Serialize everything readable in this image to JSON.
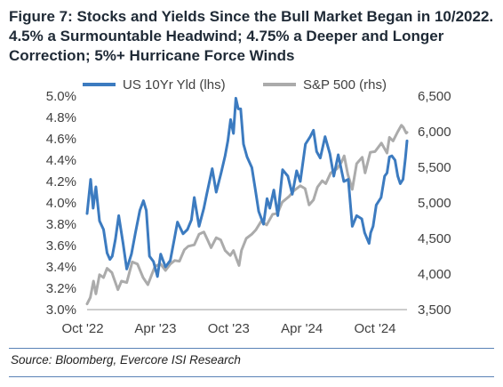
{
  "title": "Figure 7: Stocks and Yields Since the Bull Market Began in 10/2022. 4.5% a Surmountable Headwind; 4.75% a Deeper and Longer Correction; 5%+ Hurricane Force Winds",
  "source": "Source: Bloomberg, Evercore ISI Research",
  "chart_data": {
    "type": "line",
    "title": "Figure 7: Stocks and Yields Since the Bull Market Began in 10/2022. 4.5% a Surmountable Headwind; 4.75% a Deeper and Longer Correction; 5%+ Hurricane Force Winds",
    "xlabel": "",
    "ylabel_left": "",
    "ylabel_right": "",
    "x_tick_labels": [
      "Oct '22",
      "Apr '23",
      "Oct '23",
      "Apr '24",
      "Oct '24"
    ],
    "x_tick_dates": [
      "2022-10-01",
      "2023-04-01",
      "2023-10-01",
      "2024-04-01",
      "2024-10-01"
    ],
    "x_range": [
      "2022-10-12",
      "2024-12-20"
    ],
    "y_left": {
      "ticks": [
        "3.0%",
        "3.2%",
        "3.4%",
        "3.6%",
        "3.8%",
        "4.0%",
        "4.2%",
        "4.4%",
        "4.6%",
        "4.8%",
        "5.0%"
      ],
      "min": 3.0,
      "max": 5.0
    },
    "y_right": {
      "ticks": [
        "3,500",
        "4,000",
        "4,500",
        "5,000",
        "5,500",
        "6,000",
        "6,500"
      ],
      "min": 3500,
      "max": 6500
    },
    "grid": false,
    "legend_position": "top-center",
    "series": [
      {
        "name": "US 10Yr Yld (lhs)",
        "axis": "left",
        "color": "#3c7bc0",
        "points": [
          [
            "2022-10-12",
            3.9
          ],
          [
            "2022-10-21",
            4.22
          ],
          [
            "2022-10-27",
            3.95
          ],
          [
            "2022-11-03",
            4.15
          ],
          [
            "2022-11-12",
            3.83
          ],
          [
            "2022-11-22",
            3.75
          ],
          [
            "2022-12-01",
            3.53
          ],
          [
            "2022-12-08",
            3.47
          ],
          [
            "2022-12-14",
            3.5
          ],
          [
            "2022-12-22",
            3.66
          ],
          [
            "2022-12-30",
            3.88
          ],
          [
            "2023-01-10",
            3.62
          ],
          [
            "2023-01-19",
            3.38
          ],
          [
            "2023-01-31",
            3.52
          ],
          [
            "2023-02-10",
            3.72
          ],
          [
            "2023-02-21",
            3.93
          ],
          [
            "2023-03-02",
            4.02
          ],
          [
            "2023-03-09",
            3.93
          ],
          [
            "2023-03-17",
            3.5
          ],
          [
            "2023-03-27",
            3.45
          ],
          [
            "2023-04-06",
            3.31
          ],
          [
            "2023-04-14",
            3.52
          ],
          [
            "2023-04-26",
            3.4
          ],
          [
            "2023-05-08",
            3.46
          ],
          [
            "2023-05-19",
            3.68
          ],
          [
            "2023-05-26",
            3.82
          ],
          [
            "2023-06-09",
            3.71
          ],
          [
            "2023-06-20",
            3.75
          ],
          [
            "2023-06-30",
            3.84
          ],
          [
            "2023-07-07",
            4.05
          ],
          [
            "2023-07-19",
            3.78
          ],
          [
            "2023-07-31",
            3.95
          ],
          [
            "2023-08-07",
            4.08
          ],
          [
            "2023-08-21",
            4.32
          ],
          [
            "2023-08-31",
            4.1
          ],
          [
            "2023-09-12",
            4.28
          ],
          [
            "2023-09-22",
            4.44
          ],
          [
            "2023-09-29",
            4.58
          ],
          [
            "2023-10-06",
            4.78
          ],
          [
            "2023-10-13",
            4.65
          ],
          [
            "2023-10-19",
            4.98
          ],
          [
            "2023-10-25",
            4.88
          ],
          [
            "2023-10-31",
            4.88
          ],
          [
            "2023-11-07",
            4.55
          ],
          [
            "2023-11-16",
            4.43
          ],
          [
            "2023-11-28",
            4.33
          ],
          [
            "2023-12-07",
            4.12
          ],
          [
            "2023-12-15",
            3.92
          ],
          [
            "2023-12-27",
            3.8
          ],
          [
            "2024-01-05",
            4.04
          ],
          [
            "2024-01-12",
            3.95
          ],
          [
            "2024-01-22",
            4.12
          ],
          [
            "2024-02-01",
            3.88
          ],
          [
            "2024-02-13",
            4.31
          ],
          [
            "2024-02-26",
            4.25
          ],
          [
            "2024-03-08",
            4.08
          ],
          [
            "2024-03-19",
            4.3
          ],
          [
            "2024-03-28",
            4.2
          ],
          [
            "2024-04-10",
            4.55
          ],
          [
            "2024-04-22",
            4.62
          ],
          [
            "2024-04-30",
            4.68
          ],
          [
            "2024-05-08",
            4.48
          ],
          [
            "2024-05-17",
            4.42
          ],
          [
            "2024-05-29",
            4.62
          ],
          [
            "2024-06-10",
            4.46
          ],
          [
            "2024-06-20",
            4.25
          ],
          [
            "2024-07-01",
            4.45
          ],
          [
            "2024-07-15",
            4.2
          ],
          [
            "2024-07-26",
            4.22
          ],
          [
            "2024-08-05",
            3.78
          ],
          [
            "2024-08-16",
            3.88
          ],
          [
            "2024-08-29",
            3.85
          ],
          [
            "2024-09-05",
            3.72
          ],
          [
            "2024-09-16",
            3.62
          ],
          [
            "2024-09-20",
            3.72
          ],
          [
            "2024-09-26",
            3.78
          ],
          [
            "2024-10-04",
            3.98
          ],
          [
            "2024-10-16",
            4.05
          ],
          [
            "2024-10-25",
            4.25
          ],
          [
            "2024-10-31",
            4.28
          ],
          [
            "2024-11-06",
            4.43
          ],
          [
            "2024-11-12",
            4.44
          ],
          [
            "2024-11-20",
            4.4
          ],
          [
            "2024-11-27",
            4.25
          ],
          [
            "2024-12-03",
            4.18
          ],
          [
            "2024-12-10",
            4.22
          ],
          [
            "2024-12-16",
            4.42
          ],
          [
            "2024-12-20",
            4.58
          ]
        ]
      },
      {
        "name": "S&P 500 (rhs)",
        "axis": "right",
        "color": "#ababab",
        "points": [
          [
            "2022-10-12",
            3580
          ],
          [
            "2022-10-20",
            3670
          ],
          [
            "2022-10-28",
            3900
          ],
          [
            "2022-11-03",
            3720
          ],
          [
            "2022-11-12",
            3990
          ],
          [
            "2022-11-22",
            3950
          ],
          [
            "2022-12-01",
            4080
          ],
          [
            "2022-12-13",
            4020
          ],
          [
            "2022-12-28",
            3780
          ],
          [
            "2023-01-06",
            3900
          ],
          [
            "2023-01-19",
            3880
          ],
          [
            "2023-02-02",
            4170
          ],
          [
            "2023-02-15",
            4140
          ],
          [
            "2023-03-01",
            3950
          ],
          [
            "2023-03-13",
            3850
          ],
          [
            "2023-03-22",
            3980
          ],
          [
            "2023-03-31",
            4110
          ],
          [
            "2023-04-14",
            4140
          ],
          [
            "2023-04-26",
            4050
          ],
          [
            "2023-05-08",
            4140
          ],
          [
            "2023-05-19",
            4190
          ],
          [
            "2023-05-31",
            4180
          ],
          [
            "2023-06-12",
            4340
          ],
          [
            "2023-06-22",
            4390
          ],
          [
            "2023-07-07",
            4410
          ],
          [
            "2023-07-19",
            4560
          ],
          [
            "2023-07-31",
            4590
          ],
          [
            "2023-08-10",
            4470
          ],
          [
            "2023-08-18",
            4370
          ],
          [
            "2023-08-31",
            4510
          ],
          [
            "2023-09-11",
            4480
          ],
          [
            "2023-09-22",
            4330
          ],
          [
            "2023-10-05",
            4260
          ],
          [
            "2023-10-13",
            4330
          ],
          [
            "2023-10-20",
            4220
          ],
          [
            "2023-10-27",
            4120
          ],
          [
            "2023-11-02",
            4330
          ],
          [
            "2023-11-14",
            4500
          ],
          [
            "2023-11-28",
            4560
          ],
          [
            "2023-12-08",
            4620
          ],
          [
            "2023-12-21",
            4740
          ],
          [
            "2024-01-04",
            4690
          ],
          [
            "2024-01-19",
            4840
          ],
          [
            "2024-01-31",
            4850
          ],
          [
            "2024-02-12",
            5010
          ],
          [
            "2024-02-29",
            5090
          ],
          [
            "2024-03-12",
            5170
          ],
          [
            "2024-03-28",
            5240
          ],
          [
            "2024-04-09",
            5200
          ],
          [
            "2024-04-19",
            4970
          ],
          [
            "2024-04-30",
            5040
          ],
          [
            "2024-05-10",
            5220
          ],
          [
            "2024-05-22",
            5310
          ],
          [
            "2024-05-31",
            5270
          ],
          [
            "2024-06-12",
            5420
          ],
          [
            "2024-06-28",
            5480
          ],
          [
            "2024-07-09",
            5570
          ],
          [
            "2024-07-16",
            5660
          ],
          [
            "2024-07-25",
            5400
          ],
          [
            "2024-08-05",
            5190
          ],
          [
            "2024-08-16",
            5550
          ],
          [
            "2024-08-30",
            5640
          ],
          [
            "2024-09-06",
            5420
          ],
          [
            "2024-09-19",
            5710
          ],
          [
            "2024-10-01",
            5720
          ],
          [
            "2024-10-17",
            5840
          ],
          [
            "2024-10-31",
            5700
          ],
          [
            "2024-11-06",
            5920
          ],
          [
            "2024-11-15",
            5870
          ],
          [
            "2024-11-27",
            6000
          ],
          [
            "2024-12-06",
            6090
          ],
          [
            "2024-12-11",
            6060
          ],
          [
            "2024-12-18",
            5980
          ],
          [
            "2024-12-20",
            5990
          ]
        ]
      }
    ]
  }
}
